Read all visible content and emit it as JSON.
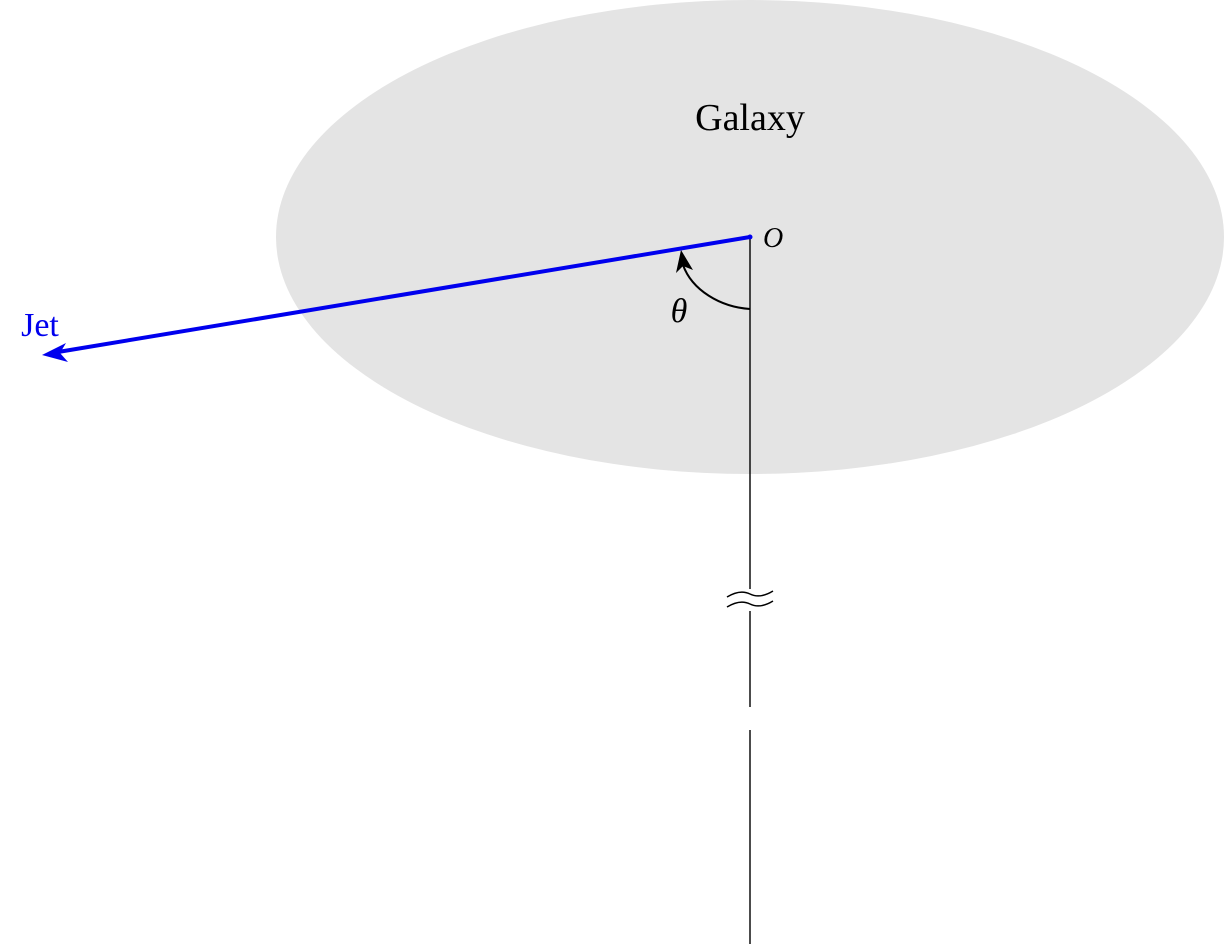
{
  "labels": {
    "galaxy": "Galaxy",
    "origin": "O",
    "jet": "Jet",
    "angle": "θ"
  },
  "colors": {
    "galaxy_fill": "#e4e4e4",
    "jet": "#0000ee",
    "line": "#000000",
    "background": "#ffffff"
  },
  "icons": {
    "axis_break": "double-wave-break-icon",
    "jet_arrowhead": "arrowhead-icon",
    "angle_arrowhead": "arrowhead-icon"
  }
}
